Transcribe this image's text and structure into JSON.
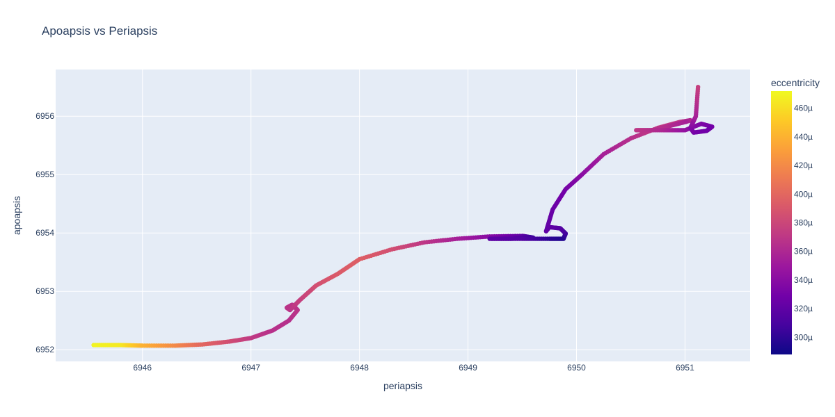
{
  "chart_data": {
    "type": "scatter",
    "title": "Apoapsis vs Periapsis",
    "xlabel": "periapsis",
    "ylabel": "apoapsis",
    "xlim": [
      6945.2,
      6951.6
    ],
    "ylim": [
      6951.8,
      6956.8
    ],
    "xticks": [
      6946,
      6947,
      6948,
      6949,
      6950,
      6951
    ],
    "yticks": [
      6952,
      6953,
      6954,
      6955,
      6956
    ],
    "grid": true,
    "colorbar": {
      "title": "eccentricity",
      "range": [
        288,
        472
      ],
      "ticks": [
        300,
        320,
        340,
        360,
        380,
        400,
        420,
        440,
        460
      ],
      "tick_labels": [
        "300µ",
        "320µ",
        "340µ",
        "360µ",
        "380µ",
        "400µ",
        "420µ",
        "440µ",
        "460µ"
      ],
      "colorscale": [
        "#0d0887",
        "#46039f",
        "#7201a8",
        "#9c179e",
        "#bd3786",
        "#d8576b",
        "#ed7953",
        "#fb9f3a",
        "#fdca26",
        "#f0f921"
      ]
    },
    "series": [
      {
        "x": [
          6945.55,
          6945.8,
          6946.0,
          6946.3,
          6946.55,
          6946.8,
          6947.0,
          6947.2,
          6947.35,
          6947.43,
          6947.38,
          6947.33,
          6947.36,
          6947.45,
          6947.6,
          6947.8,
          6948.0,
          6948.3,
          6948.6,
          6948.9,
          6949.2,
          6949.5,
          6949.6,
          6949.4,
          6949.2,
          6949.5,
          6949.75,
          6949.88,
          6949.9,
          6949.85,
          6949.75,
          6949.72,
          6949.78,
          6949.9,
          6950.05,
          6950.25,
          6950.5,
          6950.75,
          6950.95,
          6951.05,
          6951.0,
          6950.85,
          6950.7,
          6950.55,
          6950.8,
          6951.0,
          6951.15,
          6951.25,
          6951.2,
          6951.08,
          6951.05,
          6951.1,
          6951.12
        ],
        "y": [
          6952.08,
          6952.08,
          6952.07,
          6952.07,
          6952.09,
          6952.14,
          6952.2,
          6952.33,
          6952.5,
          6952.68,
          6952.77,
          6952.72,
          6952.68,
          6952.85,
          6953.1,
          6953.3,
          6953.55,
          6953.72,
          6953.84,
          6953.9,
          6953.94,
          6953.95,
          6953.92,
          6953.9,
          6953.9,
          6953.9,
          6953.9,
          6953.9,
          6953.99,
          6954.08,
          6954.1,
          6954.03,
          6954.4,
          6954.75,
          6955.0,
          6955.35,
          6955.62,
          6955.8,
          6955.9,
          6955.93,
          6955.9,
          6955.83,
          6955.76,
          6955.76,
          6955.76,
          6955.76,
          6955.87,
          6955.82,
          6955.75,
          6955.72,
          6955.8,
          6956.0,
          6956.5
        ],
        "color": [
          470,
          465,
          440,
          420,
          400,
          385,
          372,
          366,
          365,
          368,
          368,
          368,
          368,
          375,
          385,
          392,
          395,
          385,
          370,
          355,
          340,
          320,
          305,
          315,
          320,
          315,
          300,
          295,
          305,
          315,
          320,
          320,
          325,
          330,
          340,
          355,
          365,
          372,
          370,
          362,
          355,
          362,
          368,
          370,
          360,
          345,
          335,
          330,
          328,
          330,
          335,
          355,
          375
        ]
      }
    ]
  }
}
